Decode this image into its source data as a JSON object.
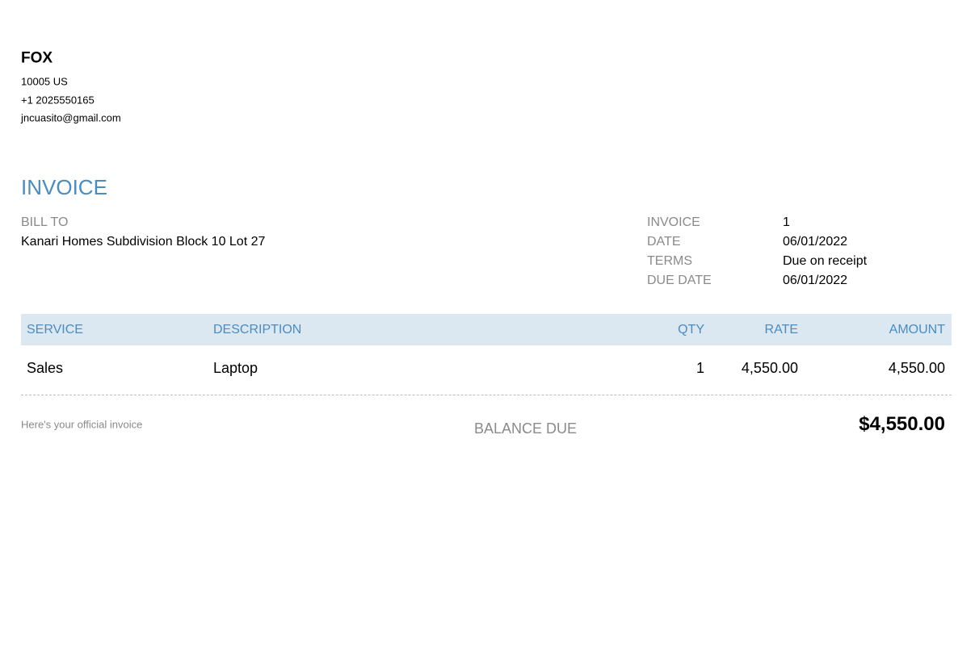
{
  "company": {
    "name": "FOX",
    "address": "10005 US",
    "phone": "+1 2025550165",
    "email": "jncuasito@gmail.com"
  },
  "title": "INVOICE",
  "bill_to": {
    "label": "BILL TO",
    "address": "Kanari Homes Subdivision Block 10 Lot 27"
  },
  "details": [
    {
      "label": "INVOICE",
      "value": "1"
    },
    {
      "label": "DATE",
      "value": "06/01/2022"
    },
    {
      "label": "TERMS",
      "value": "Due on receipt"
    },
    {
      "label": "DUE DATE",
      "value": "06/01/2022"
    }
  ],
  "table": {
    "columns": [
      "SERVICE",
      "DESCRIPTION",
      "QTY",
      "RATE",
      "AMOUNT"
    ],
    "rows": [
      [
        "Sales",
        "Laptop",
        "1",
        "4,550.00",
        "4,550.00"
      ]
    ]
  },
  "footer": {
    "note": "Here's your official invoice",
    "balance_label": "BALANCE DUE",
    "balance": "$4,550.00"
  }
}
